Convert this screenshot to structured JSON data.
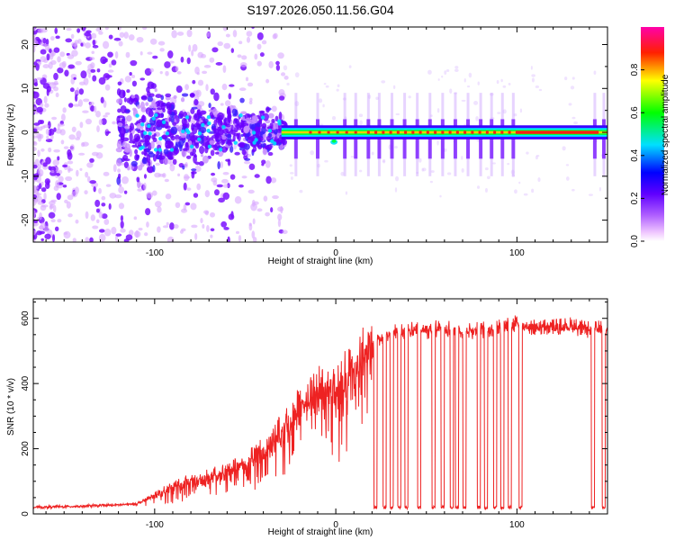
{
  "title": "S197.2026.050.11.56.G04",
  "chart_data": [
    {
      "type": "heatmap",
      "xlabel": "Height of straight line (km)",
      "ylabel": "Frequency (Hz)",
      "xlim": [
        -167,
        150
      ],
      "ylim": [
        -25,
        24
      ],
      "xticks": [
        -100,
        0,
        100
      ],
      "xtick_labels": [
        "-100",
        "0",
        "100"
      ],
      "yticks": [
        -20,
        -10,
        0,
        10,
        20
      ],
      "ytick_labels": [
        "-20",
        "-10",
        "0",
        "10",
        "20"
      ],
      "colorbar": {
        "label": "Normalized spectral amplitude",
        "range": [
          0,
          1
        ],
        "ticks": [
          0.0,
          0.2,
          0.4,
          0.6,
          0.8
        ],
        "tick_labels": [
          "0.0",
          "0.2",
          "0.4",
          "0.6",
          "0.8"
        ],
        "colors": [
          "#ffffff",
          "#f0c8ff",
          "#7000ff",
          "#0000ff",
          "#00e0ff",
          "#00ff00",
          "#ffff00",
          "#ff0000",
          "#ff00aa"
        ]
      },
      "regions": [
        {
          "name": "scattered noise",
          "x": [
            -167,
            -120
          ],
          "y": [
            -25,
            24
          ]
        },
        {
          "name": "broadening",
          "x": [
            -120,
            -30
          ],
          "y": [
            -12,
            10
          ]
        },
        {
          "name": "carrier line",
          "x": [
            -30,
            150
          ],
          "y": [
            -1,
            1
          ]
        }
      ]
    },
    {
      "type": "line",
      "xlabel": "Height of straight line (km)",
      "ylabel": "SNR (10 * v/v)",
      "xlim": [
        -167,
        150
      ],
      "ylim": [
        0,
        660
      ],
      "xticks": [
        -100,
        0,
        100
      ],
      "xtick_labels": [
        "-100",
        "0",
        "100"
      ],
      "yticks": [
        0,
        200,
        400,
        600
      ],
      "ytick_labels": [
        "0",
        "200",
        "400",
        "600"
      ],
      "series": [
        {
          "name": "SNR",
          "color": "#ee2222",
          "x": [
            -167,
            -150,
            -130,
            -110,
            -100,
            -90,
            -80,
            -70,
            -60,
            -50,
            -40,
            -30,
            -22,
            -18,
            -15,
            -10,
            -5,
            0,
            5,
            10,
            15,
            18,
            20,
            25,
            30,
            40,
            50,
            60,
            70,
            80,
            90,
            100,
            110,
            120,
            130,
            140,
            150
          ],
          "values": [
            20,
            22,
            25,
            30,
            55,
            80,
            100,
            110,
            130,
            150,
            190,
            250,
            300,
            330,
            340,
            370,
            390,
            360,
            400,
            430,
            460,
            490,
            500,
            540,
            550,
            560,
            560,
            570,
            560,
            560,
            570,
            580,
            570,
            570,
            575,
            560,
            570
          ]
        }
      ],
      "dropouts": [
        22,
        27,
        31,
        35,
        39,
        46,
        54,
        59,
        64,
        67,
        71,
        79,
        83,
        88,
        92,
        96,
        102,
        142,
        148
      ],
      "dropout_level": 15
    }
  ]
}
